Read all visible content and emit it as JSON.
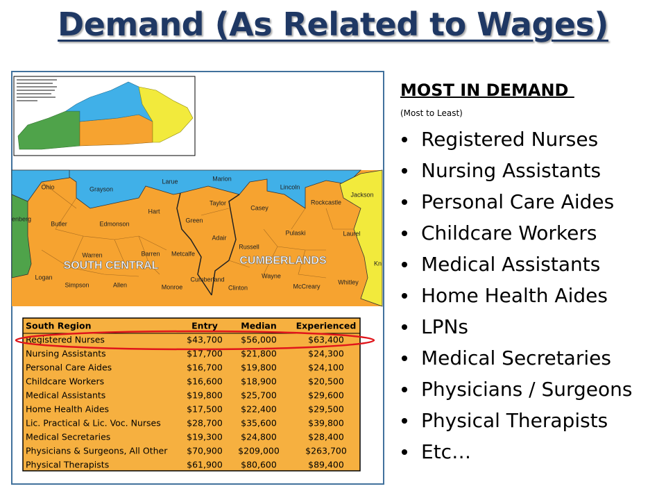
{
  "title": "Demand (As Related to Wages)",
  "map": {
    "labels": [
      "Ohio",
      "enberg",
      "Grayson",
      "Larue",
      "Marion",
      "Lincoln",
      "Jackson",
      "Hart",
      "Taylor",
      "Casey",
      "Rockcastle",
      "Butler",
      "Edmonson",
      "Green",
      "Pulaski",
      "Laurel",
      "Adair",
      "Russell",
      "Warren",
      "Barren",
      "Metcalfe",
      "SOUTH CENTRAL",
      "CUMBERLANDS",
      "Kn",
      "Logan",
      "Wayne",
      "Simpson",
      "Allen",
      "Monroe",
      "Cumberland",
      "Clinton",
      "McCreary",
      "Whitley"
    ]
  },
  "table": {
    "header": [
      "South Region",
      "Entry",
      "Median",
      "Experienced"
    ],
    "rows": [
      [
        "Registered Nurses",
        "$43,700",
        "$56,000",
        "$63,400"
      ],
      [
        "Nursing Assistants",
        "$17,700",
        "$21,800",
        "$24,300"
      ],
      [
        "Personal Care Aides",
        "$16,700",
        "$19,800",
        "$24,100"
      ],
      [
        "Childcare Workers",
        "$16,600",
        "$18,900",
        "$20,500"
      ],
      [
        "Medical Assistants",
        "$19,800",
        "$25,700",
        "$29,600"
      ],
      [
        "Home Health Aides",
        "$17,500",
        "$22,400",
        "$29,500"
      ],
      [
        "Lic. Practical & Lic. Voc. Nurses",
        "$28,700",
        "$35,600",
        "$39,800"
      ],
      [
        "Medical Secretaries",
        "$19,300",
        "$24,800",
        "$28,400"
      ],
      [
        "Physicians & Surgeons, All Other",
        "$70,900",
        "$209,000",
        "$263,700"
      ],
      [
        "Physical Therapists",
        "$61,900",
        "$80,600",
        "$89,400"
      ]
    ]
  },
  "demand": {
    "heading": "MOST IN DEMAND ",
    "subheading": "(Most to Least)",
    "items": [
      "Registered Nurses",
      "Nursing Assistants",
      "Personal Care Aides",
      "Childcare Workers",
      "Medical Assistants",
      "Home Health Aides",
      "LPNs",
      "Medical Secretaries",
      "Physicians / Surgeons",
      "Physical Therapists",
      "Etc…"
    ]
  }
}
